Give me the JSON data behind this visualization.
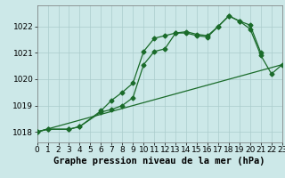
{
  "title": "Graphe pression niveau de la mer (hPa)",
  "bg_color": "#cce8e8",
  "grid_color": "#aacccc",
  "line_color": "#1a6b2a",
  "xlim": [
    0,
    23
  ],
  "ylim": [
    1017.6,
    1022.8
  ],
  "yticks": [
    1018,
    1019,
    1020,
    1021,
    1022
  ],
  "xticks": [
    0,
    1,
    2,
    3,
    4,
    5,
    6,
    7,
    8,
    9,
    10,
    11,
    12,
    13,
    14,
    15,
    16,
    17,
    18,
    19,
    20,
    21,
    22,
    23
  ],
  "line1_x": [
    0,
    1,
    3,
    4,
    6,
    7,
    8,
    9,
    10,
    11,
    12,
    13,
    14,
    15,
    16,
    17,
    18,
    19,
    20,
    21
  ],
  "line1_y": [
    1018.0,
    1018.1,
    1018.1,
    1018.2,
    1018.8,
    1019.2,
    1019.5,
    1019.85,
    1021.05,
    1021.55,
    1021.65,
    1021.75,
    1021.75,
    1021.65,
    1021.6,
    1022.0,
    1022.4,
    1022.2,
    1022.05,
    1021.0
  ],
  "line2_x": [
    0,
    1,
    3,
    4,
    6,
    7,
    8,
    9,
    10,
    11,
    12,
    13,
    14,
    15,
    16,
    17,
    18,
    19,
    20,
    21,
    22,
    23
  ],
  "line2_y": [
    1018.0,
    1018.1,
    1018.1,
    1018.2,
    1018.75,
    1018.85,
    1019.0,
    1019.3,
    1020.55,
    1021.05,
    1021.15,
    1021.75,
    1021.8,
    1021.7,
    1021.65,
    1022.0,
    1022.4,
    1022.2,
    1021.9,
    1020.9,
    1020.2,
    1020.55
  ],
  "line3_x": [
    0,
    23
  ],
  "line3_y": [
    1018.0,
    1020.55
  ],
  "tick_fontsize": 6.5,
  "xlabel_fontsize": 7.5
}
